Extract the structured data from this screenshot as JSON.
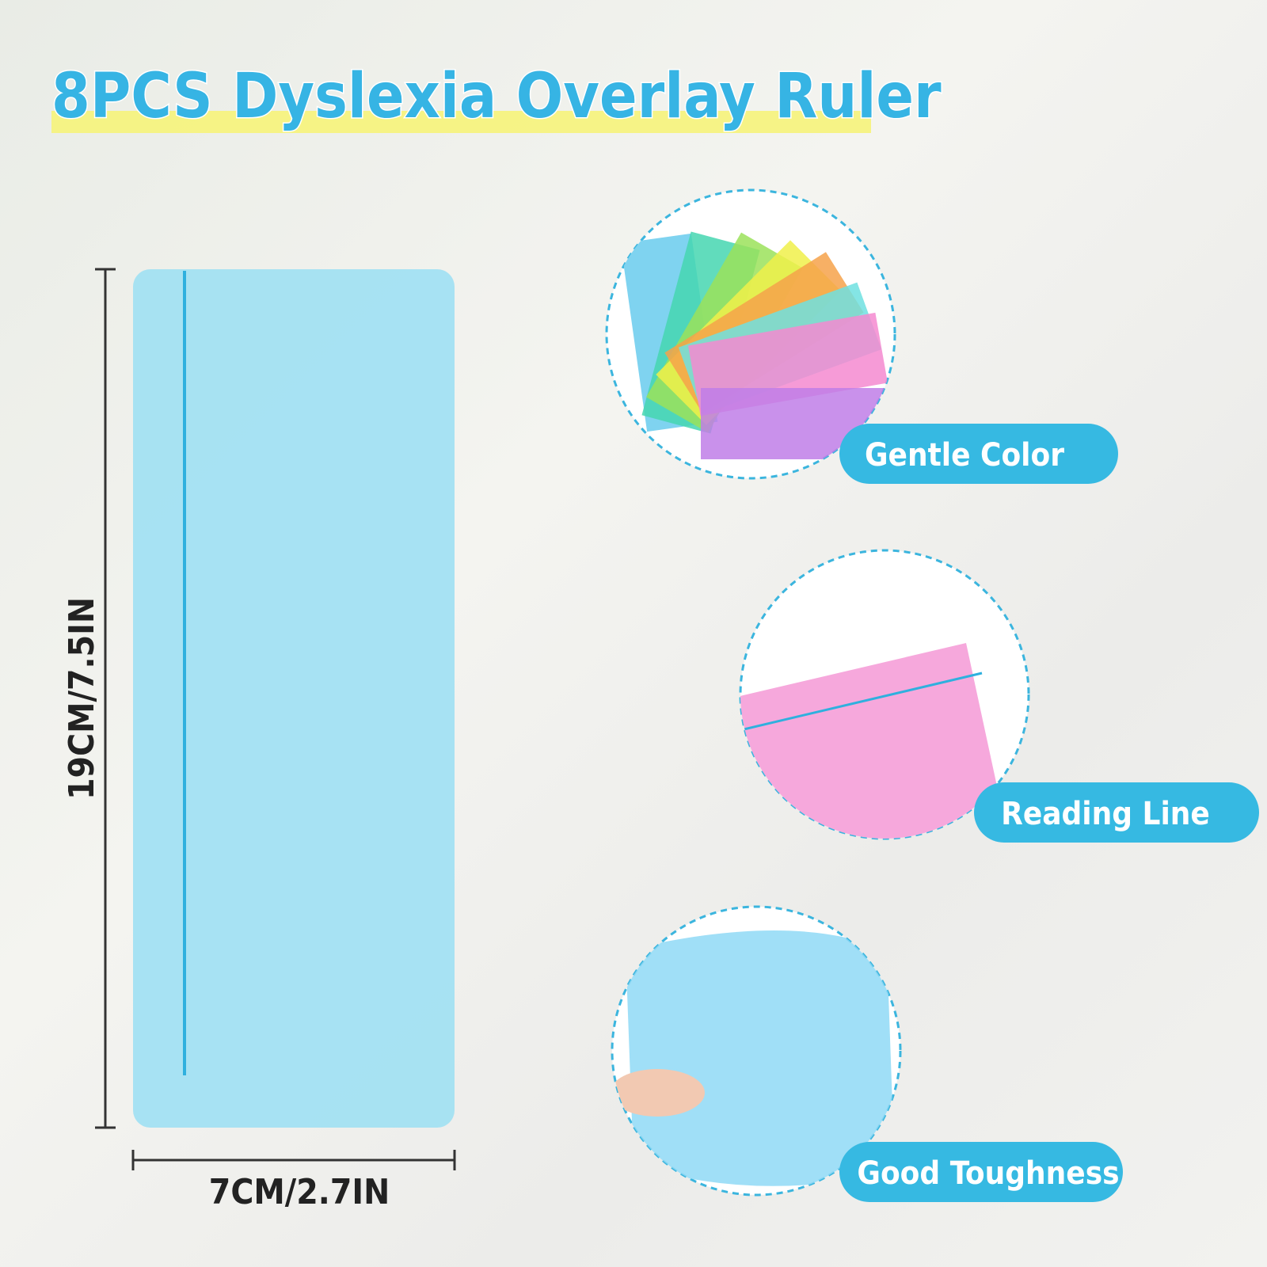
{
  "title": "8PCS Dyslexia Overlay Ruler",
  "dimensions": {
    "height": "19CM/7.5IN",
    "width": "7CM/2.7IN"
  },
  "features": [
    {
      "label": "Gentle Color"
    },
    {
      "label": "Reading Line"
    },
    {
      "label": "Good Toughness"
    }
  ]
}
